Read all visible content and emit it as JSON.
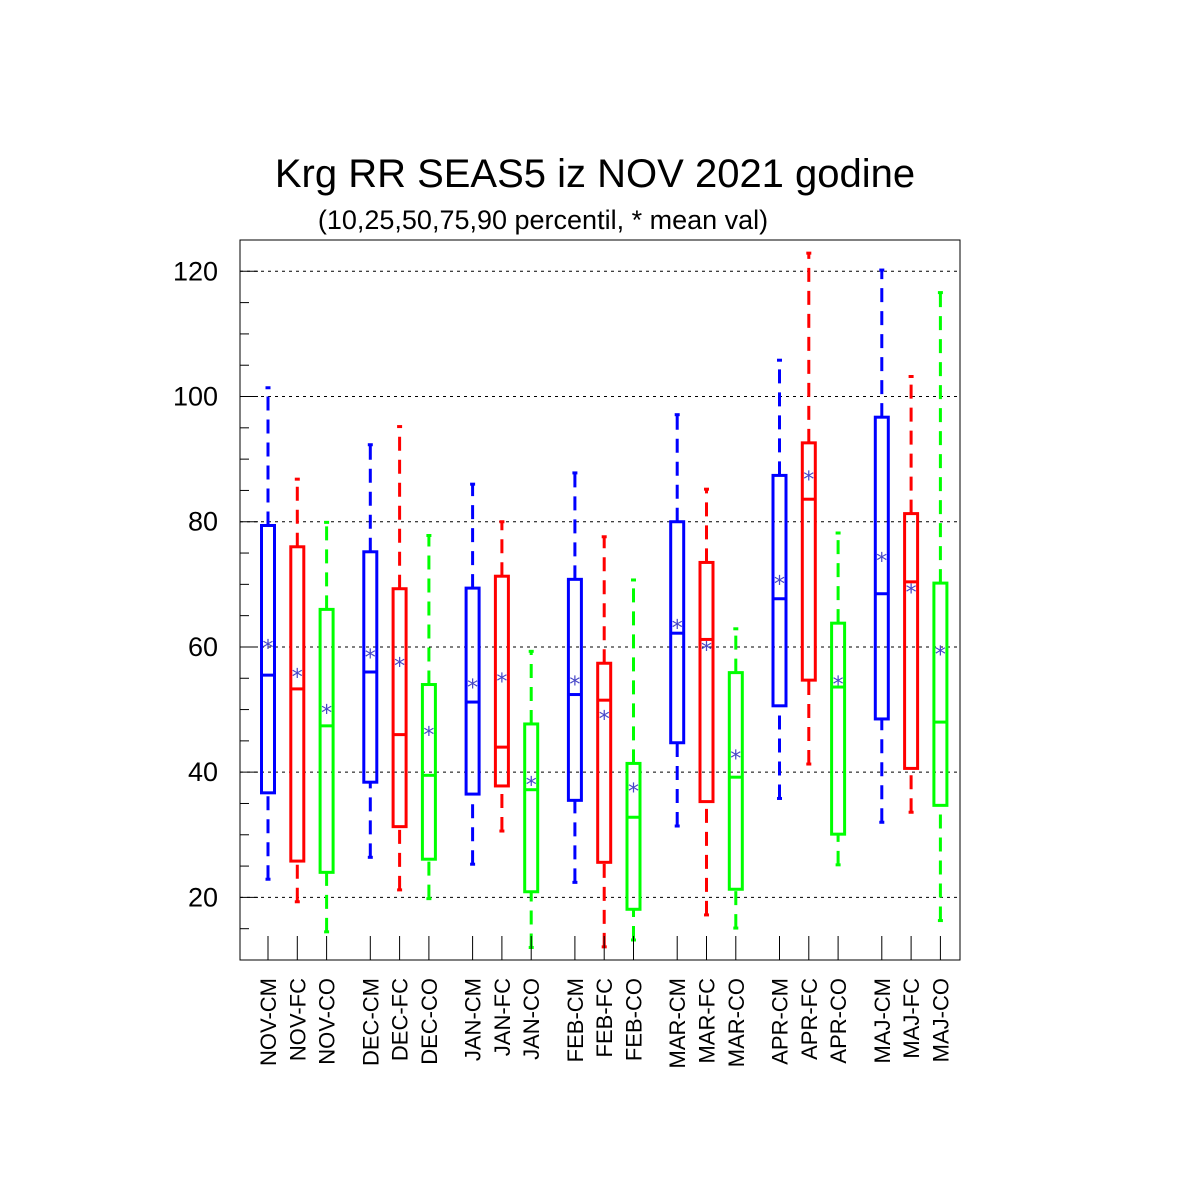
{
  "chart_data": {
    "type": "box",
    "title": "Krg RR SEAS5 iz NOV 2021 godine",
    "subtitle": "(10,25,50,75,90 percentil, * mean val)",
    "xlabel": "",
    "ylabel": "",
    "ylim": [
      10,
      125
    ],
    "yticks": [
      20,
      40,
      60,
      80,
      100,
      120
    ],
    "grid": true,
    "series_colors": {
      "CM": "#0000ff",
      "FC": "#ff0000",
      "CO": "#00ff00"
    },
    "mean_marker_color": "#4848c8",
    "mean_symbol": "*",
    "groups": [
      {
        "month": "NOV",
        "boxes": [
          {
            "label": "NOV-CM",
            "series": "CM",
            "p10": 22.9,
            "p25": 36.7,
            "p50": 55.5,
            "p75": 79.4,
            "p90": 101.4,
            "mean": 59.9
          },
          {
            "label": "NOV-FC",
            "series": "FC",
            "p10": 19.3,
            "p25": 25.8,
            "p50": 53.3,
            "p75": 76.0,
            "p90": 86.8,
            "mean": 55.3
          },
          {
            "label": "NOV-CO",
            "series": "CO",
            "p10": 14.5,
            "p25": 24.0,
            "p50": 47.4,
            "p75": 66.0,
            "p90": 79.9,
            "mean": 49.5
          }
        ]
      },
      {
        "month": "DEC",
        "boxes": [
          {
            "label": "DEC-CM",
            "series": "CM",
            "p10": 26.4,
            "p25": 38.4,
            "p50": 56.0,
            "p75": 75.2,
            "p90": 92.3,
            "mean": 58.4
          },
          {
            "label": "DEC-FC",
            "series": "FC",
            "p10": 21.2,
            "p25": 31.3,
            "p50": 46.0,
            "p75": 69.3,
            "p90": 95.2,
            "mean": 57.0
          },
          {
            "label": "DEC-CO",
            "series": "CO",
            "p10": 19.8,
            "p25": 26.1,
            "p50": 39.5,
            "p75": 54.0,
            "p90": 77.8,
            "mean": 46.0
          }
        ]
      },
      {
        "month": "JAN",
        "boxes": [
          {
            "label": "JAN-CM",
            "series": "CM",
            "p10": 25.3,
            "p25": 36.5,
            "p50": 51.2,
            "p75": 69.4,
            "p90": 86.0,
            "mean": 53.6
          },
          {
            "label": "JAN-FC",
            "series": "FC",
            "p10": 30.6,
            "p25": 37.8,
            "p50": 44.0,
            "p75": 71.3,
            "p90": 80.0,
            "mean": 54.6
          },
          {
            "label": "JAN-CO",
            "series": "CO",
            "p10": 12.0,
            "p25": 20.9,
            "p50": 37.2,
            "p75": 47.7,
            "p90": 59.3,
            "mean": 38.0
          }
        ]
      },
      {
        "month": "FEB",
        "boxes": [
          {
            "label": "FEB-CM",
            "series": "CM",
            "p10": 22.4,
            "p25": 35.5,
            "p50": 52.4,
            "p75": 70.8,
            "p90": 87.8,
            "mean": 54.1
          },
          {
            "label": "FEB-FC",
            "series": "FC",
            "p10": 12.1,
            "p25": 25.6,
            "p50": 51.5,
            "p75": 57.4,
            "p90": 77.6,
            "mean": 48.6
          },
          {
            "label": "FEB-CO",
            "series": "CO",
            "p10": 13.2,
            "p25": 18.1,
            "p50": 32.8,
            "p75": 41.4,
            "p90": 70.7,
            "mean": 37.0
          }
        ]
      },
      {
        "month": "MAR",
        "boxes": [
          {
            "label": "MAR-CM",
            "series": "CM",
            "p10": 31.4,
            "p25": 44.7,
            "p50": 62.2,
            "p75": 80.0,
            "p90": 97.1,
            "mean": 63.1
          },
          {
            "label": "MAR-FC",
            "series": "FC",
            "p10": 17.2,
            "p25": 35.3,
            "p50": 61.2,
            "p75": 73.5,
            "p90": 85.2,
            "mean": 59.6
          },
          {
            "label": "MAR-CO",
            "series": "CO",
            "p10": 15.1,
            "p25": 21.3,
            "p50": 39.2,
            "p75": 55.9,
            "p90": 62.9,
            "mean": 42.3
          }
        ]
      },
      {
        "month": "APR",
        "boxes": [
          {
            "label": "APR-CM",
            "series": "CM",
            "p10": 35.8,
            "p25": 50.6,
            "p50": 67.7,
            "p75": 87.4,
            "p90": 105.8,
            "mean": 70.1
          },
          {
            "label": "APR-FC",
            "series": "FC",
            "p10": 41.3,
            "p25": 54.7,
            "p50": 83.6,
            "p75": 92.6,
            "p90": 122.9,
            "mean": 86.8
          },
          {
            "label": "APR-CO",
            "series": "CO",
            "p10": 25.2,
            "p25": 30.1,
            "p50": 53.6,
            "p75": 63.8,
            "p90": 78.2,
            "mean": 54.1
          }
        ]
      },
      {
        "month": "MAJ",
        "boxes": [
          {
            "label": "MAJ-CM",
            "series": "CM",
            "p10": 32.0,
            "p25": 48.5,
            "p50": 68.5,
            "p75": 96.7,
            "p90": 120.2,
            "mean": 73.8
          },
          {
            "label": "MAJ-FC",
            "series": "FC",
            "p10": 33.6,
            "p25": 40.6,
            "p50": 70.4,
            "p75": 81.3,
            "p90": 103.2,
            "mean": 68.8
          },
          {
            "label": "MAJ-CO",
            "series": "CO",
            "p10": 16.3,
            "p25": 34.7,
            "p50": 48.0,
            "p75": 70.2,
            "p90": 116.6,
            "mean": 58.9
          }
        ]
      }
    ]
  }
}
